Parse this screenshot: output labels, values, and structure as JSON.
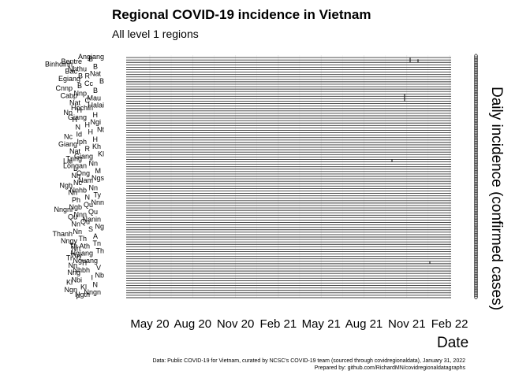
{
  "chart_data": {
    "type": "line",
    "title": "Regional COVID-19 incidence in Vietnam",
    "subtitle": "All level 1 regions",
    "xlabel": "Date",
    "ylabel": "Daily incidence (confirmed cases)",
    "x_ticks": [
      "May 20",
      "Aug 20",
      "Nov 20",
      "Feb 21",
      "May 21",
      "Aug 21",
      "Nov 21",
      "Feb 22"
    ],
    "x_range": [
      "2020-02-01",
      "2022-01-31"
    ],
    "grid": true,
    "legend": "none",
    "series": [
      {
        "name": "Angiang"
      },
      {
        "name": "B"
      },
      {
        "name": "Bentre"
      },
      {
        "name": "Binhdinh"
      },
      {
        "name": "B"
      },
      {
        "name": "Nhthu"
      },
      {
        "name": "Bac"
      },
      {
        "name": "Nat"
      },
      {
        "name": "B R"
      },
      {
        "name": "Egiang"
      },
      {
        "name": "B"
      },
      {
        "name": "Cc"
      },
      {
        "name": "B"
      },
      {
        "name": "Cnnp"
      },
      {
        "name": "B"
      },
      {
        "name": "Nnp"
      },
      {
        "name": "Cabp"
      },
      {
        "name": "Mau"
      },
      {
        "name": "C"
      },
      {
        "name": "Nat"
      },
      {
        "name": "Halai"
      },
      {
        "name": "Hochin"
      },
      {
        "name": "H"
      },
      {
        "name": "Nn"
      },
      {
        "name": "H"
      },
      {
        "name": "Giang"
      },
      {
        "name": "H"
      },
      {
        "name": "Ngi"
      },
      {
        "name": "H"
      },
      {
        "name": "N"
      },
      {
        "name": "Nt"
      },
      {
        "name": "H"
      },
      {
        "name": "Id"
      },
      {
        "name": "Nc"
      },
      {
        "name": "H"
      },
      {
        "name": "Iph"
      },
      {
        "name": "Giang"
      },
      {
        "name": "Kh"
      },
      {
        "name": "R"
      },
      {
        "name": "Nat"
      },
      {
        "name": "Kl"
      },
      {
        "name": "Giang"
      },
      {
        "name": "Tnng"
      },
      {
        "name": "Lai"
      },
      {
        "name": "Nn"
      },
      {
        "name": "Longan"
      },
      {
        "name": "L"
      },
      {
        "name": "M"
      },
      {
        "name": "Ong"
      },
      {
        "name": "Nn"
      },
      {
        "name": "Ngs"
      },
      {
        "name": "Nam"
      },
      {
        "name": "Nc"
      },
      {
        "name": "Ngh"
      },
      {
        "name": "Nn"
      },
      {
        "name": "Nnhb"
      },
      {
        "name": "Nn"
      },
      {
        "name": "Ty"
      },
      {
        "name": "N"
      },
      {
        "name": "Ph"
      },
      {
        "name": "Nnn"
      },
      {
        "name": "Qu"
      },
      {
        "name": "Ngb"
      },
      {
        "name": "Nngni"
      },
      {
        "name": "Qu"
      },
      {
        "name": "Nnn"
      },
      {
        "name": "Qu"
      },
      {
        "name": "Nanin"
      },
      {
        "name": "Qu"
      },
      {
        "name": "Nn"
      },
      {
        "name": "Ng"
      },
      {
        "name": "S"
      },
      {
        "name": "Nn"
      },
      {
        "name": "Thanh"
      },
      {
        "name": "A"
      },
      {
        "name": "Th"
      },
      {
        "name": "Nngy"
      },
      {
        "name": "Tn"
      },
      {
        "name": "Th Ath"
      },
      {
        "name": "Nn"
      },
      {
        "name": "Th"
      },
      {
        "name": "Ngiang"
      },
      {
        "name": "Tuy"
      },
      {
        "name": "Tr"
      },
      {
        "name": "Nguang"
      },
      {
        "name": "Tl"
      },
      {
        "name": "Nn"
      },
      {
        "name": "V"
      },
      {
        "name": "Nhbh"
      },
      {
        "name": "Nng"
      },
      {
        "name": "Nb"
      },
      {
        "name": "I"
      },
      {
        "name": "Nbi"
      },
      {
        "name": "Kl"
      },
      {
        "name": "N"
      },
      {
        "name": "Kl"
      },
      {
        "name": "Ngn"
      },
      {
        "name": "Nngn"
      },
      {
        "name": "Ngth"
      },
      {
        "name": "F"
      }
    ]
  },
  "caption": {
    "line1": "Data: Public COVID-19 for Vietnam, curated by NCSC's COVID-19 team (sourced through covidregionaldata), January 31, 2022",
    "line2": "Prepared by: github.com/RichardMN/covidregionaldatagraphs"
  }
}
